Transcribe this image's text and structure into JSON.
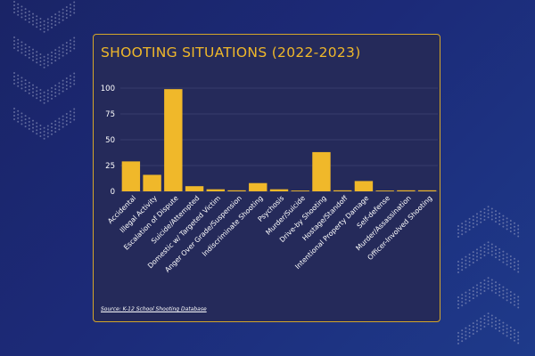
{
  "page": {
    "source_text": "Source: K-12 School Shooting Database"
  },
  "colors": {
    "bar": "#f0b82a",
    "panel_bg": "#252a5a",
    "panel_border": "#d4a62a",
    "title": "#f0b82a",
    "axis_text": "#ffffff",
    "grid": "#4a4f7f",
    "deco_dots": "#9aa3c7"
  },
  "chart_data": {
    "type": "bar",
    "title": "SHOOTING SITUATIONS (2022-2023)",
    "xlabel": "",
    "ylabel": "",
    "ylim": [
      0,
      100
    ],
    "yticks": [
      0,
      25,
      50,
      75,
      100
    ],
    "grid": true,
    "categories": [
      "Accidental",
      "Illegal Activity",
      "Escalation of Dispute",
      "Suicide/Attempted",
      "Domestic w/ Targeted Victim",
      "Anger Over Grade/Suspension",
      "Indiscriminate Shooting",
      "Psychosis",
      "Murder/Suicide",
      "Drive-by Shooting",
      "Hostage/Standoff",
      "Intentional Property Damage",
      "Self-defense",
      "Murder/Assassination",
      "Officer-Involved Shooting"
    ],
    "values": [
      29,
      16,
      99,
      5,
      2,
      1,
      8,
      2,
      0,
      38,
      1,
      10,
      0,
      1,
      1
    ]
  }
}
